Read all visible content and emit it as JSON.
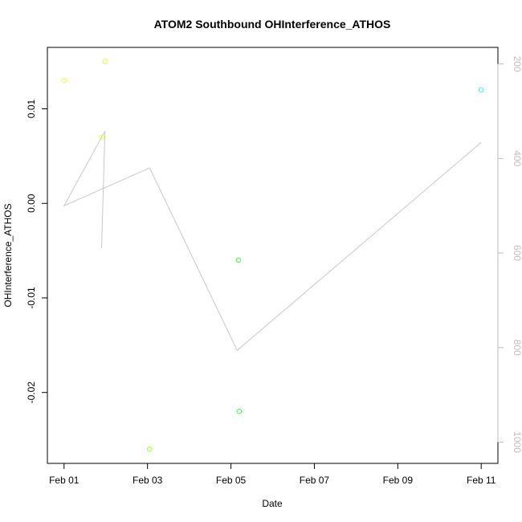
{
  "chart_data": {
    "type": "scatter",
    "title": "ATOM2 Southbound OHInterference_ATHOS",
    "xlabel": "Date",
    "ylabel": "OHInterference_ATHOS",
    "x_ticks": [
      "Feb 01",
      "Feb 03",
      "Feb 05",
      "Feb 07",
      "Feb 09",
      "Feb 11"
    ],
    "x_tick_days": [
      1,
      3,
      5,
      7,
      9,
      11
    ],
    "xlim_days": [
      0.6,
      11.4
    ],
    "ylim": [
      -0.0275,
      0.0165
    ],
    "y_ticks": [
      -0.02,
      -0.01,
      0.0,
      0.01
    ],
    "y_tick_labels": [
      "-0.02",
      "-0.01",
      "0.00",
      "0.01"
    ],
    "y2_ticks": [
      200,
      400,
      600,
      800,
      1000
    ],
    "y2_tick_labels": [
      "200",
      "400",
      "600",
      "800",
      "1000"
    ],
    "y2lim": [
      1045,
      165
    ],
    "grid": false,
    "points": [
      {
        "x_day": 1.0,
        "y": 0.013,
        "color": "#e5ff3f"
      },
      {
        "x_day": 1.9,
        "y": 0.007,
        "color": "#e5ff3f"
      },
      {
        "x_day": 1.98,
        "y": 0.015,
        "color": "#e5ff3f"
      },
      {
        "x_day": 3.05,
        "y": -0.026,
        "color": "#9cff3f"
      },
      {
        "x_day": 5.18,
        "y": -0.006,
        "color": "#3fff3f"
      },
      {
        "x_day": 5.2,
        "y": -0.022,
        "color": "#3fff3f"
      },
      {
        "x_day": 11.0,
        "y": 0.012,
        "color": "#3fffd8"
      }
    ],
    "line_series": {
      "axis": "right",
      "color": "#c8c8c8",
      "x_days": [
        1.9,
        1.98,
        1.0,
        3.05,
        5.15,
        11.0
      ],
      "y": [
        590,
        342,
        500,
        420,
        806,
        366
      ]
    }
  }
}
